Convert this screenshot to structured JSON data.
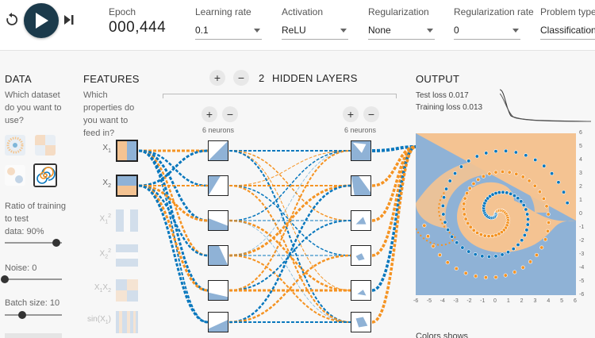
{
  "topbar": {
    "epoch_label": "Epoch",
    "epoch_value": "000,444",
    "learning_rate": {
      "label": "Learning rate",
      "value": "0.1"
    },
    "activation": {
      "label": "Activation",
      "value": "ReLU"
    },
    "regularization": {
      "label": "Regularization",
      "value": "None"
    },
    "regularization_rate": {
      "label": "Regularization rate",
      "value": "0"
    },
    "problem_type": {
      "label": "Problem type",
      "value": "Classification"
    }
  },
  "data_panel": {
    "title": "DATA",
    "question": [
      "Which dataset",
      "do you want to",
      "use?"
    ],
    "ratio_lines": [
      "Ratio of training",
      "to test",
      "data:  90%"
    ],
    "ratio_value": 90,
    "noise_label": "Noise:  0",
    "noise_value": 0,
    "batch_label": "Batch size:  10",
    "batch_value": 10
  },
  "features_panel": {
    "title": "FEATURES",
    "question": [
      "Which",
      "properties do",
      "you want to",
      "feed in?"
    ],
    "features": [
      "X1",
      "X2",
      "X1²",
      "X2²",
      "X1X2",
      "sin(X1)"
    ]
  },
  "network": {
    "layer_count": "2",
    "hidden_layers_label": "HIDDEN LAYERS",
    "layer1_neurons": "6 neurons",
    "layer2_neurons": "6 neurons"
  },
  "output_panel": {
    "title": "OUTPUT",
    "test_loss": "Test loss 0.017",
    "training_loss": "Training loss 0.013",
    "colors_shows": "Colors shows"
  },
  "colors": {
    "orange": "#f59322",
    "blue": "#0877bd",
    "bg_orange": "#f4c392",
    "bg_blue": "#8fb2d6"
  },
  "chart_data": {
    "type": "scatter",
    "xlim": [
      -6,
      6
    ],
    "ylim": [
      -6,
      6
    ],
    "x_ticks": [
      "-6",
      "-5",
      "-4",
      "-3",
      "-2",
      "-1",
      "0",
      "1",
      "2",
      "3",
      "4",
      "5",
      "6"
    ],
    "y_ticks": [
      "6",
      "5",
      "4",
      "3",
      "2",
      "1",
      "0",
      "-1",
      "-2",
      "-3",
      "-4",
      "-5",
      "-6"
    ],
    "series": [
      {
        "class": "orange"
      },
      {
        "class": "blue"
      }
    ]
  }
}
